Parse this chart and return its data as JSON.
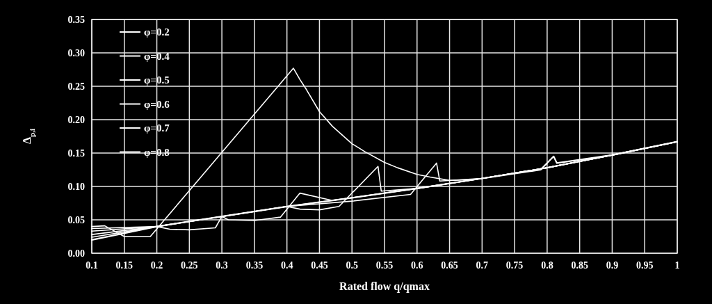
{
  "chart_data": {
    "type": "line",
    "xlabel": "Rated flow q/qmax",
    "ylabel": "Δ$_{p,i}$",
    "xlim": [
      0.1,
      1
    ],
    "xticks": [
      0.1,
      0.15,
      0.2,
      0.25,
      0.3,
      0.35,
      0.4,
      0.45,
      0.5,
      0.55,
      0.6,
      0.65,
      0.7,
      0.75,
      0.8,
      0.85,
      0.9,
      0.95,
      1
    ],
    "ylim": [
      0,
      0.35
    ],
    "yticks": [
      {
        "value": 0,
        "label": "0.00"
      },
      {
        "value": 0.05,
        "label": "0.05"
      },
      {
        "value": 0.1,
        "label": "0.10"
      },
      {
        "value": 0.15,
        "label": "0.15"
      },
      {
        "value": 0.2,
        "label": "0.20"
      },
      {
        "value": 0.25,
        "label": "0.25"
      },
      {
        "value": 0.3,
        "label": "0.30"
      },
      {
        "value": 0.35,
        "label": "0.35"
      }
    ],
    "grid": true,
    "legend": "top left",
    "line_style": "solid",
    "series": [
      {
        "name": "φ=0.2",
        "color": "#ffffff",
        "x": [
          0.1,
          0.12,
          0.15,
          0.19,
          0.3,
          0.41,
          0.42,
          0.43,
          0.45,
          0.47,
          0.5,
          0.52,
          0.55,
          0.57,
          0.6,
          0.62,
          0.65,
          0.68,
          0.7,
          0.8,
          0.9,
          1
        ],
        "values": [
          0.04,
          0.041,
          0.025,
          0.025,
          0.151,
          0.277,
          0.26,
          0.245,
          0.212,
          0.19,
          0.164,
          0.152,
          0.136,
          0.128,
          0.118,
          0.114,
          0.109,
          0.11,
          0.112,
          0.128,
          0.147,
          0.167
        ]
      },
      {
        "name": "φ=0.4",
        "color": "#ffffff",
        "x": [
          0.1,
          0.2,
          0.22,
          0.25,
          0.29,
          0.3,
          0.4,
          0.5,
          0.6,
          0.7,
          0.8,
          0.9,
          1
        ],
        "values": [
          0.037,
          0.04,
          0.036,
          0.035,
          0.038,
          0.055,
          0.07,
          0.083,
          0.097,
          0.112,
          0.128,
          0.147,
          0.167
        ]
      },
      {
        "name": "φ=0.5",
        "color": "#ffffff",
        "x": [
          0.1,
          0.2,
          0.3,
          0.31,
          0.35,
          0.39,
          0.42,
          0.47,
          0.5,
          0.6,
          0.7,
          0.8,
          0.9,
          1
        ],
        "values": [
          0.033,
          0.04,
          0.055,
          0.05,
          0.049,
          0.054,
          0.09,
          0.079,
          0.083,
          0.097,
          0.112,
          0.128,
          0.147,
          0.167
        ]
      },
      {
        "name": "φ=0.6",
        "color": "#ffffff",
        "x": [
          0.1,
          0.2,
          0.3,
          0.4,
          0.42,
          0.45,
          0.48,
          0.54,
          0.545,
          0.6,
          0.7,
          0.8,
          0.9,
          1
        ],
        "values": [
          0.028,
          0.04,
          0.055,
          0.07,
          0.066,
          0.065,
          0.07,
          0.13,
          0.093,
          0.097,
          0.112,
          0.128,
          0.147,
          0.167
        ]
      },
      {
        "name": "φ=0.7",
        "color": "#ffffff",
        "x": [
          0.1,
          0.2,
          0.3,
          0.4,
          0.45,
          0.5,
          0.59,
          0.63,
          0.635,
          0.7,
          0.8,
          0.9,
          1
        ],
        "values": [
          0.024,
          0.04,
          0.055,
          0.07,
          0.074,
          0.078,
          0.088,
          0.135,
          0.108,
          0.112,
          0.128,
          0.147,
          0.167
        ]
      },
      {
        "name": "φ=0.8",
        "color": "#ffffff",
        "x": [
          0.1,
          0.2,
          0.3,
          0.4,
          0.5,
          0.6,
          0.7,
          0.79,
          0.81,
          0.815,
          0.9,
          1
        ],
        "values": [
          0.02,
          0.04,
          0.055,
          0.07,
          0.083,
          0.097,
          0.112,
          0.125,
          0.145,
          0.135,
          0.147,
          0.167
        ]
      }
    ]
  }
}
